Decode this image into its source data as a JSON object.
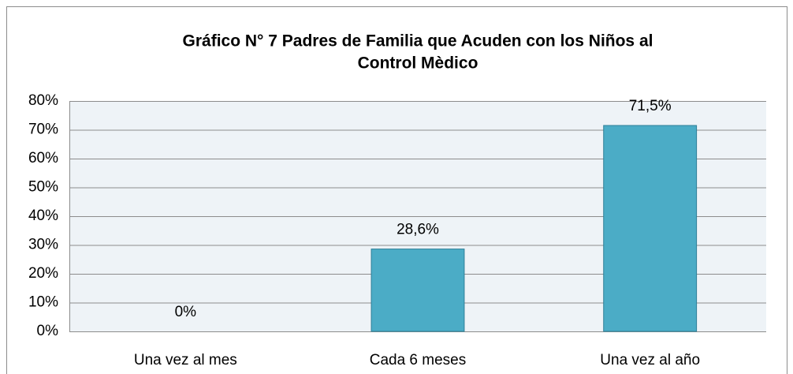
{
  "chart_data": {
    "type": "bar",
    "title": [
      "Gráfico N° 7 Padres de Familia que Acuden con los Niños al",
      "Control Mèdico"
    ],
    "categories": [
      "Una vez al mes",
      "Cada 6 meses",
      "Una vez al año"
    ],
    "values": [
      0,
      28.6,
      71.5
    ],
    "value_labels": [
      "0%",
      "28,6%",
      "71,5%"
    ],
    "color": "#4bacc6",
    "ylim": [
      0,
      80
    ],
    "yticks": [
      {
        "value": 0,
        "label": "0%"
      },
      {
        "value": 10,
        "label": "10%"
      },
      {
        "value": 20,
        "label": "20%"
      },
      {
        "value": 30,
        "label": "30%"
      },
      {
        "value": 40,
        "label": "40%"
      },
      {
        "value": 50,
        "label": "50%"
      },
      {
        "value": 60,
        "label": "60%"
      },
      {
        "value": 70,
        "label": "70%"
      },
      {
        "value": 80,
        "label": "80%"
      }
    ],
    "grid": true
  }
}
